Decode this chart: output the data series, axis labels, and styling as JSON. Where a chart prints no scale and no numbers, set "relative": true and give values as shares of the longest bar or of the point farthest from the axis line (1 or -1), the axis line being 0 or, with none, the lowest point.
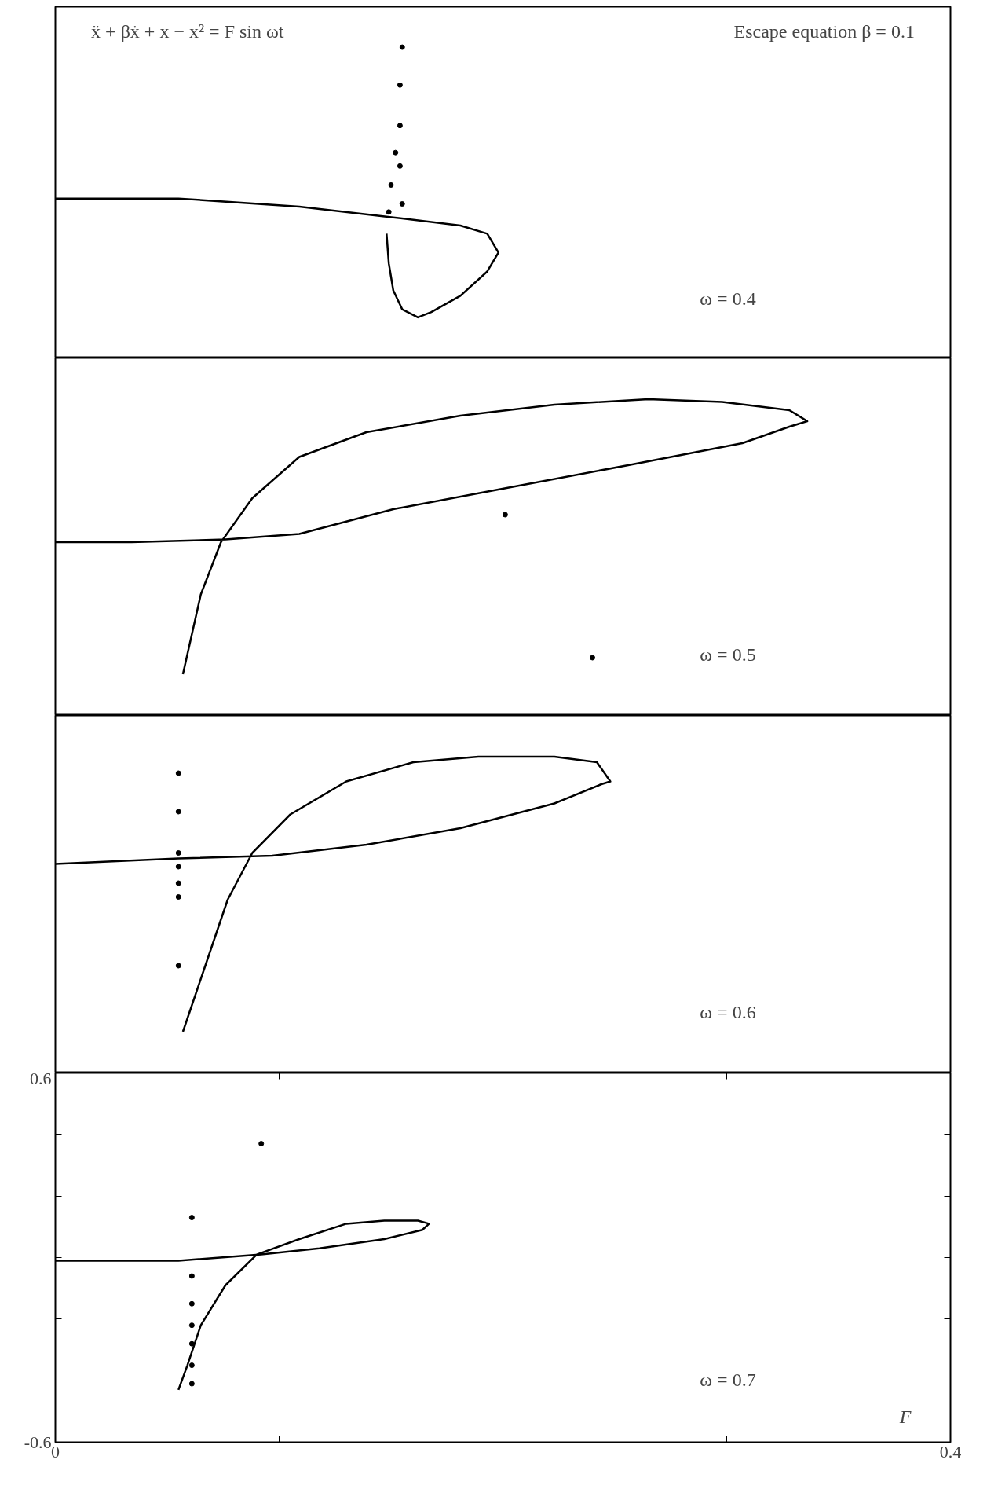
{
  "chart_data": [
    {
      "type": "line",
      "relative": true,
      "annotations": [
        "ẍ + βẋ + x − x² = F sin ωt",
        "Escape equation β = 0.1",
        "ω = 0.4"
      ],
      "xlim": [
        0,
        0.4
      ],
      "grid": false,
      "series": [
        {
          "color": "#000000",
          "x": [
            0,
            0.055,
            0.109,
            0.151,
            0.181,
            0.193,
            0.198,
            0.193,
            0.181,
            0.168,
            0.162,
            0.155,
            0.151,
            0.149,
            0.148
          ],
          "values": [
            0.44,
            0.44,
            0.41,
            0.37,
            0.34,
            0.31,
            0.24,
            0.17,
            0.08,
            0.02,
            0,
            0.03,
            0.1,
            0.2,
            0.31
          ]
        },
        {
          "type": "scatter",
          "marker": "circle",
          "color": "#000000",
          "x": [
            0.149,
            0.15,
            0.152,
            0.154,
            0.154,
            0.155,
            0.154,
            0.155
          ],
          "values": [
            0.39,
            0.49,
            0.61,
            0.71,
            0.86,
            1,
            0.56,
            0.42
          ]
        }
      ]
    },
    {
      "type": "line",
      "relative": true,
      "annotations": [
        "ω = 0.5"
      ],
      "xlim": [
        0,
        0.4
      ],
      "grid": false,
      "series": [
        {
          "color": "#000000",
          "x": [
            0,
            0.034,
            0.076,
            0.109,
            0.151,
            0.197,
            0.256,
            0.307,
            0.328,
            0.336,
            0.328,
            0.298,
            0.265,
            0.223,
            0.181,
            0.139,
            0.109,
            0.088,
            0.074,
            0.065,
            0.057
          ],
          "values": [
            0.48,
            0.48,
            0.49,
            0.51,
            0.6,
            0.67,
            0.76,
            0.84,
            0.9,
            0.92,
            0.96,
            0.99,
            1,
            0.98,
            0.94,
            0.88,
            0.79,
            0.64,
            0.48,
            0.29,
            0
          ]
        },
        {
          "type": "scatter",
          "marker": "circle",
          "color": "#000000",
          "x": [
            0.201,
            0.24
          ],
          "values": [
            0.58,
            0.06
          ]
        }
      ]
    },
    {
      "type": "line",
      "relative": true,
      "annotations": [
        "ω = 0.6"
      ],
      "xlim": [
        0,
        0.4
      ],
      "grid": false,
      "series": [
        {
          "color": "#000000",
          "x": [
            0,
            0.055,
            0.097,
            0.139,
            0.181,
            0.223,
            0.244,
            0.248,
            0.242,
            0.223,
            0.189,
            0.16,
            0.13,
            0.105,
            0.088,
            0.077,
            0.067,
            0.057
          ],
          "values": [
            0.61,
            0.63,
            0.64,
            0.68,
            0.74,
            0.83,
            0.9,
            0.91,
            0.98,
            1,
            1,
            0.98,
            0.91,
            0.79,
            0.65,
            0.48,
            0.24,
            0
          ]
        },
        {
          "type": "scatter",
          "marker": "circle",
          "color": "#000000",
          "x": [
            0.055,
            0.055,
            0.055,
            0.055,
            0.055,
            0.055,
            0.055
          ],
          "values": [
            0.94,
            0.8,
            0.65,
            0.6,
            0.54,
            0.49,
            0.24
          ]
        }
      ]
    },
    {
      "type": "line",
      "annotations": [
        "ω = 0.7"
      ],
      "xlabel": "F",
      "xlim": [
        0,
        0.4
      ],
      "xticks": [
        0,
        {
          "value": 0.1,
          "label": null
        },
        {
          "value": 0.2,
          "label": null
        },
        {
          "value": 0.3,
          "label": null
        },
        0.4
      ],
      "ylim": [
        -0.6,
        0.6
      ],
      "yticks": [
        -0.6,
        {
          "value": -0.4,
          "label": null
        },
        {
          "value": -0.2,
          "label": null
        },
        {
          "value": 0,
          "label": null
        },
        {
          "value": 0.2,
          "label": null
        },
        {
          "value": 0.4,
          "label": null
        },
        0.6
      ],
      "grid": false,
      "series": [
        {
          "color": "#000000",
          "x": [
            0,
            0.055,
            0.092,
            0.118,
            0.147,
            0.164,
            0.167,
            0.162,
            0.147,
            0.13,
            0.109,
            0.09,
            0.076,
            0.065,
            0.059,
            0.055
          ],
          "values": [
            -0.01,
            -0.01,
            0.01,
            0.03,
            0.06,
            0.09,
            0.11,
            0.12,
            0.12,
            0.11,
            0.06,
            0.01,
            -0.09,
            -0.22,
            -0.35,
            -0.43
          ]
        },
        {
          "type": "scatter",
          "marker": "circle",
          "color": "#000000",
          "x": [
            0.061,
            0.061,
            0.061,
            0.061,
            0.061,
            0.061,
            0.061,
            0.092
          ],
          "values": [
            0.13,
            -0.06,
            -0.15,
            -0.22,
            -0.28,
            -0.35,
            -0.41,
            0.37
          ]
        }
      ]
    }
  ]
}
